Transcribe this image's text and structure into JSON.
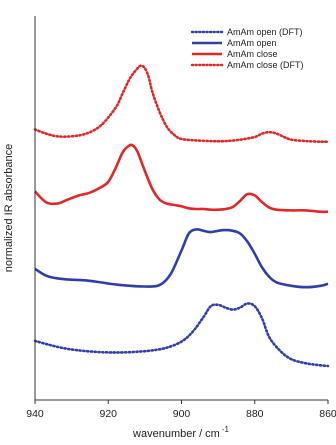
{
  "chart_data": {
    "type": "line",
    "title": "",
    "xlabel_main": "wavenumber / cm",
    "xlabel_sup": "-1",
    "ylabel": "normalized IR absorbance",
    "xlim": [
      940,
      860
    ],
    "x_reversed": true,
    "x_ticks": [
      "940",
      "920",
      "900",
      "880",
      "860"
    ],
    "x_tick_values": [
      940,
      920,
      900,
      880,
      860
    ],
    "y_tick_labels": false,
    "grid": false,
    "legend_position": "top-right",
    "series": [
      {
        "name": "AmAm open (DFT)",
        "color": "#2f3fa8",
        "dash": "dotted",
        "offset": 0.0,
        "x": [
          940,
          936,
          932,
          928,
          924,
          920,
          916,
          912,
          908,
          904,
          900,
          897,
          894,
          892,
          890,
          888,
          886,
          884,
          882,
          880,
          878,
          876,
          873,
          870,
          866,
          862,
          860
        ],
        "y": [
          0.37,
          0.31,
          0.26,
          0.23,
          0.21,
          0.2,
          0.2,
          0.21,
          0.23,
          0.27,
          0.36,
          0.5,
          0.72,
          0.88,
          0.9,
          0.86,
          0.83,
          0.86,
          0.92,
          0.88,
          0.7,
          0.42,
          0.22,
          0.1,
          0.04,
          0.01,
          0.0
        ]
      },
      {
        "name": "AmAm open",
        "color": "#2f3fa8",
        "dash": "solid",
        "offset": 1.15,
        "x": [
          940,
          937,
          934,
          930,
          926,
          922,
          918,
          914,
          910,
          906,
          903,
          900,
          898,
          896,
          894,
          892,
          890,
          888,
          886,
          884,
          882,
          880,
          878,
          876,
          874,
          870,
          866,
          862,
          860
        ],
        "y": [
          0.28,
          0.18,
          0.14,
          0.12,
          0.11,
          0.08,
          0.05,
          0.03,
          0.02,
          0.04,
          0.2,
          0.55,
          0.8,
          0.86,
          0.84,
          0.82,
          0.84,
          0.85,
          0.84,
          0.8,
          0.68,
          0.5,
          0.3,
          0.16,
          0.08,
          0.03,
          0.01,
          0.03,
          0.06
        ]
      },
      {
        "name": "AmAm close",
        "color": "#e02828",
        "dash": "solid",
        "offset": 2.25,
        "x": [
          940,
          937,
          934,
          931,
          928,
          925,
          922,
          920,
          918,
          916,
          914,
          913,
          912,
          910,
          908,
          906,
          904,
          902,
          900,
          898,
          896,
          894,
          892,
          890,
          888,
          886,
          884,
          882,
          880,
          878,
          876,
          874,
          870,
          866,
          862,
          860
        ],
        "y": [
          0.32,
          0.16,
          0.14,
          0.2,
          0.26,
          0.3,
          0.38,
          0.46,
          0.66,
          0.9,
          1.0,
          0.98,
          0.9,
          0.62,
          0.36,
          0.2,
          0.14,
          0.12,
          0.1,
          0.07,
          0.06,
          0.06,
          0.05,
          0.05,
          0.06,
          0.09,
          0.18,
          0.28,
          0.26,
          0.16,
          0.08,
          0.05,
          0.04,
          0.04,
          0.02,
          0.02
        ]
      },
      {
        "name": "AmAm close (DFT)",
        "color": "#e02828",
        "dash": "dotted",
        "offset": 3.3,
        "x": [
          940,
          937,
          934,
          930,
          926,
          922,
          918,
          916,
          914,
          912,
          911,
          910,
          909,
          908,
          906,
          904,
          902,
          900,
          896,
          892,
          888,
          884,
          880,
          878,
          876,
          874,
          872,
          870,
          866,
          862,
          860
        ],
        "y": [
          0.18,
          0.12,
          0.08,
          0.08,
          0.12,
          0.24,
          0.5,
          0.72,
          0.94,
          1.08,
          1.12,
          1.08,
          0.96,
          0.74,
          0.44,
          0.22,
          0.1,
          0.04,
          0.02,
          0.01,
          0.01,
          0.03,
          0.07,
          0.12,
          0.14,
          0.12,
          0.07,
          0.03,
          0.01,
          0.0,
          0.0
        ]
      }
    ],
    "legend_order": [
      0,
      1,
      2,
      3
    ]
  }
}
